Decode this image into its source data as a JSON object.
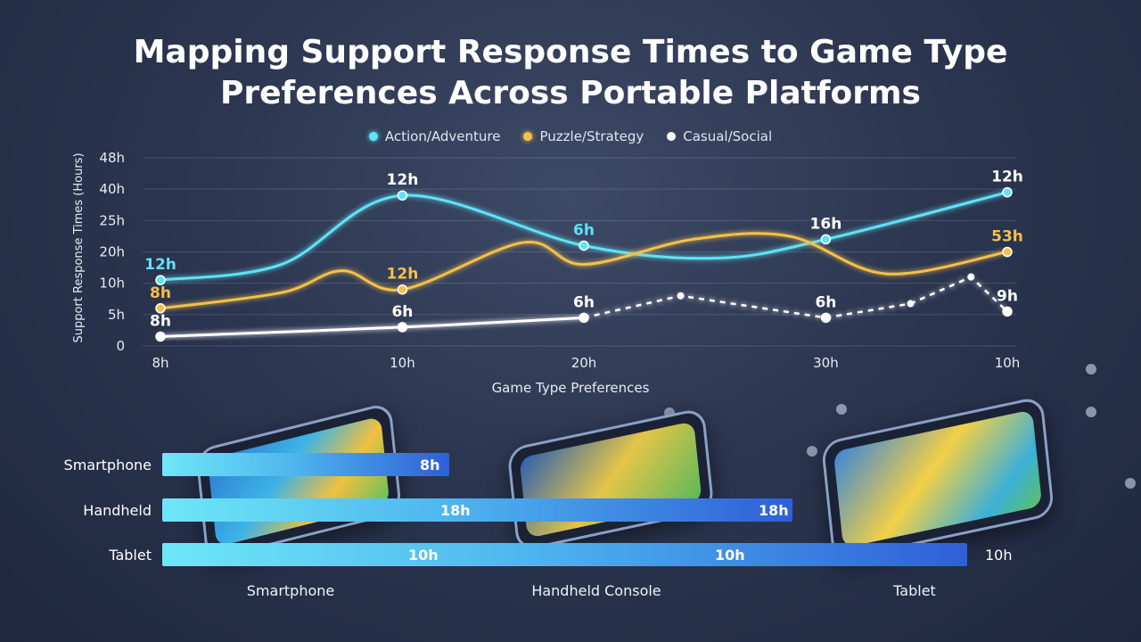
{
  "title_line1": "Mapping Support Response Times to Game Type",
  "title_line2": "Preferences Across Portable Platforms",
  "legend": [
    {
      "name": "Action/Adventure",
      "color": "#5fe3f5"
    },
    {
      "name": "Puzzle/Strategy",
      "color": "#f5c04a"
    },
    {
      "name": "Casual/Social",
      "color": "#ffffff"
    }
  ],
  "chart_data": {
    "type": "line",
    "ylabel": "Support Response Times (Hours)",
    "xlabel": "Game Type Preferences",
    "y_ticks": [
      "0",
      "5h",
      "10h",
      "20h",
      "25h",
      "40h",
      "48h"
    ],
    "x_ticks": [
      "8h",
      "10h",
      "20h",
      "30h",
      "10h"
    ],
    "grid": true,
    "legend_position": "top-center",
    "series": [
      {
        "name": "Action/Adventure",
        "color": "#5fe3f5",
        "points": [
          {
            "x": 0,
            "y": 2.1,
            "label": "12h"
          },
          {
            "x": 0.5,
            "y": 2.6
          },
          {
            "x": 1,
            "y": 4.8,
            "label": "12h"
          },
          {
            "x": 1.75,
            "y": 3.2,
            "label": "6h"
          },
          {
            "x": 2.3,
            "y": 2.8
          },
          {
            "x": 2.75,
            "y": 3.4,
            "label": "16h"
          },
          {
            "x": 3.5,
            "y": 4.9,
            "label": "12h"
          }
        ]
      },
      {
        "name": "Puzzle/Strategy",
        "color": "#f5c04a",
        "points": [
          {
            "x": 0,
            "y": 1.2,
            "label": "8h"
          },
          {
            "x": 0.5,
            "y": 1.7
          },
          {
            "x": 0.75,
            "y": 2.4
          },
          {
            "x": 1,
            "y": 1.8,
            "label": "12h"
          },
          {
            "x": 1.5,
            "y": 3.3
          },
          {
            "x": 1.75,
            "y": 2.6
          },
          {
            "x": 2.2,
            "y": 3.4
          },
          {
            "x": 2.6,
            "y": 3.5
          },
          {
            "x": 3,
            "y": 2.3
          },
          {
            "x": 3.5,
            "y": 3.0,
            "label": "53h"
          }
        ]
      },
      {
        "name": "Casual/Social",
        "color": "#ffffff",
        "points": [
          {
            "x": 0,
            "y": 0.3,
            "label": "8h"
          },
          {
            "x": 1,
            "y": 0.6,
            "label": "6h"
          },
          {
            "x": 1.75,
            "y": 0.9,
            "label": "6h"
          },
          {
            "x": 2.15,
            "y": 1.6
          },
          {
            "x": 2.75,
            "y": 0.9,
            "label": "6h"
          },
          {
            "x": 3.1,
            "y": 1.35
          },
          {
            "x": 3.35,
            "y": 2.2
          },
          {
            "x": 3.5,
            "y": 1.1,
            "label": "9h"
          }
        ]
      }
    ],
    "bars": {
      "type": "bar",
      "orientation": "horizontal",
      "categories": [
        "Smartphone",
        "Handheld",
        "Tablet"
      ],
      "values": [
        8,
        18,
        10
      ],
      "value_labels": [
        [
          "8h"
        ],
        [
          "18h",
          "18h"
        ],
        [
          "10h",
          "10h",
          "10h"
        ]
      ]
    },
    "platform_labels": [
      "Smartphone",
      "Handheld Console",
      "Tablet"
    ]
  }
}
